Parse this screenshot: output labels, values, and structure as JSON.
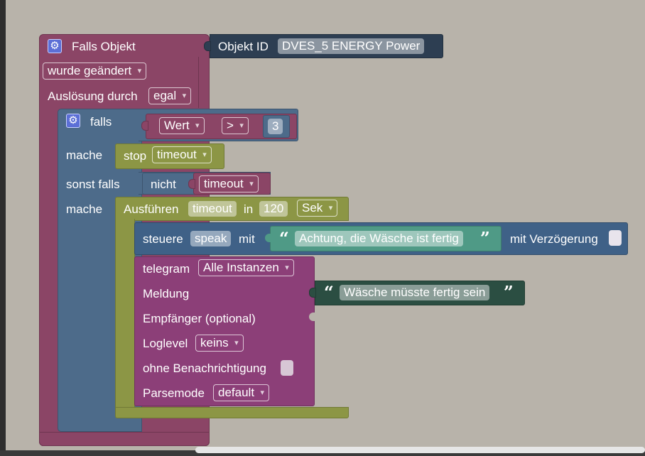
{
  "event_block": {
    "title": "Falls Objekt",
    "trigger_value": "wurde geändert",
    "caused_by_label": "Auslösung durch",
    "caused_by_value": "egal",
    "color": "#8b4566"
  },
  "object_block": {
    "label": "Objekt ID",
    "value": "DVES_5 ENERGY  Power",
    "color": "#2d3e52"
  },
  "if_block": {
    "if_label": "falls",
    "compare_left": "Wert",
    "compare_op": ">",
    "compare_right": "3",
    "do_label": "mache",
    "stop_label": "stop",
    "stop_target": "timeout",
    "elseif_label": "sonst falls",
    "not_label": "nicht",
    "not_target": "timeout",
    "do2_label": "mache",
    "color": "#4d6b8a"
  },
  "timeout_block": {
    "exec_label": "Ausführen",
    "name": "timeout",
    "in_label": "in",
    "delay": "120",
    "unit": "Sek",
    "color": "#8c9645"
  },
  "control_block": {
    "label": "steuere",
    "target": "speak",
    "with_label": "mit",
    "message": "Achtung, die Wäsche ist fertig",
    "delay_label": "mit Verzögerung",
    "color": "#3f6187"
  },
  "telegram_block": {
    "label": "telegram",
    "instance": "Alle Instanzen",
    "message_label": "Meldung",
    "message": "Wäsche müsste fertig sein",
    "recipient_label": "Empfänger (optional)",
    "loglevel_label": "Loglevel",
    "loglevel_value": "keins",
    "silent_label": "ohne Benachrichtigung",
    "parsemode_label": "Parsemode",
    "parsemode_value": "default",
    "color": "#8c3f78"
  },
  "icons": {
    "event_gear": "gear-icon",
    "if_gear": "gear-icon",
    "open_quote": "open-quote-icon",
    "close_quote": "close-quote-icon"
  },
  "canvas": {
    "background": "#b8b3aa"
  }
}
